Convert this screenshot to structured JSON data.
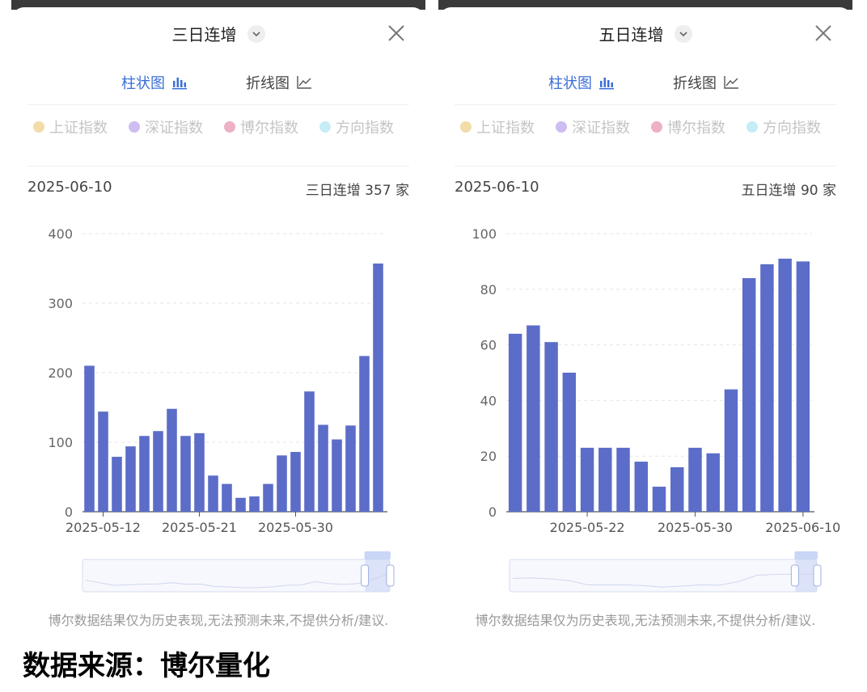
{
  "colors": {
    "bar": "#5b6dc8",
    "accent": "#3b6fd8"
  },
  "icons": [
    "chevron-down-icon",
    "close-icon",
    "bar-chart-icon",
    "line-chart-icon"
  ],
  "panels": [
    {
      "title": "三日连增",
      "tabs": {
        "bar": "柱状图",
        "line": "折线图"
      },
      "legend": [
        {
          "label": "上证指数",
          "color": "#f3dca8"
        },
        {
          "label": "深证指数",
          "color": "#cdbdf2"
        },
        {
          "label": "博尔指数",
          "color": "#eeb0c3"
        },
        {
          "label": "方向指数",
          "color": "#c5ecf7"
        }
      ],
      "date": "2025-06-10",
      "count_label": "三日连增 357 家",
      "footer": "博尔数据结果仅为历史表现,无法预测未来,不提供分析/建议.",
      "chart_data": {
        "type": "bar",
        "xlabel": "",
        "ylabel": "",
        "ylim": [
          0,
          400
        ],
        "yticks": [
          0,
          100,
          200,
          300,
          400
        ],
        "xtick_labels": [
          {
            "label": "2025-05-12",
            "index": 1
          },
          {
            "label": "2025-05-21",
            "index": 8
          },
          {
            "label": "2025-05-30",
            "index": 15
          }
        ],
        "values": [
          210,
          144,
          79,
          94,
          109,
          116,
          148,
          109,
          113,
          52,
          40,
          20,
          22,
          40,
          81,
          86,
          173,
          125,
          104,
          124,
          224,
          357
        ],
        "zoom_window": [
          0.92,
          1.0
        ]
      }
    },
    {
      "title": "五日连增",
      "tabs": {
        "bar": "柱状图",
        "line": "折线图"
      },
      "legend": [
        {
          "label": "上证指数",
          "color": "#f3dca8"
        },
        {
          "label": "深证指数",
          "color": "#cdbdf2"
        },
        {
          "label": "博尔指数",
          "color": "#eeb0c3"
        },
        {
          "label": "方向指数",
          "color": "#c5ecf7"
        }
      ],
      "date": "2025-06-10",
      "count_label": "五日连增 90 家",
      "footer": "博尔数据结果仅为历史表现,无法预测未来,不提供分析/建议.",
      "chart_data": {
        "type": "bar",
        "xlabel": "",
        "ylabel": "",
        "ylim": [
          0,
          100
        ],
        "yticks": [
          0,
          20,
          40,
          60,
          80,
          100
        ],
        "xtick_labels": [
          {
            "label": "2025-05-22",
            "index": 4
          },
          {
            "label": "2025-05-30",
            "index": 10
          },
          {
            "label": "2025-06-10",
            "index": 16
          }
        ],
        "values": [
          64,
          67,
          61,
          50,
          23,
          23,
          23,
          18,
          9,
          16,
          23,
          21,
          44,
          84,
          89,
          91,
          90
        ],
        "zoom_window": [
          0.93,
          1.0
        ]
      }
    }
  ],
  "source": "数据来源：博尔量化"
}
